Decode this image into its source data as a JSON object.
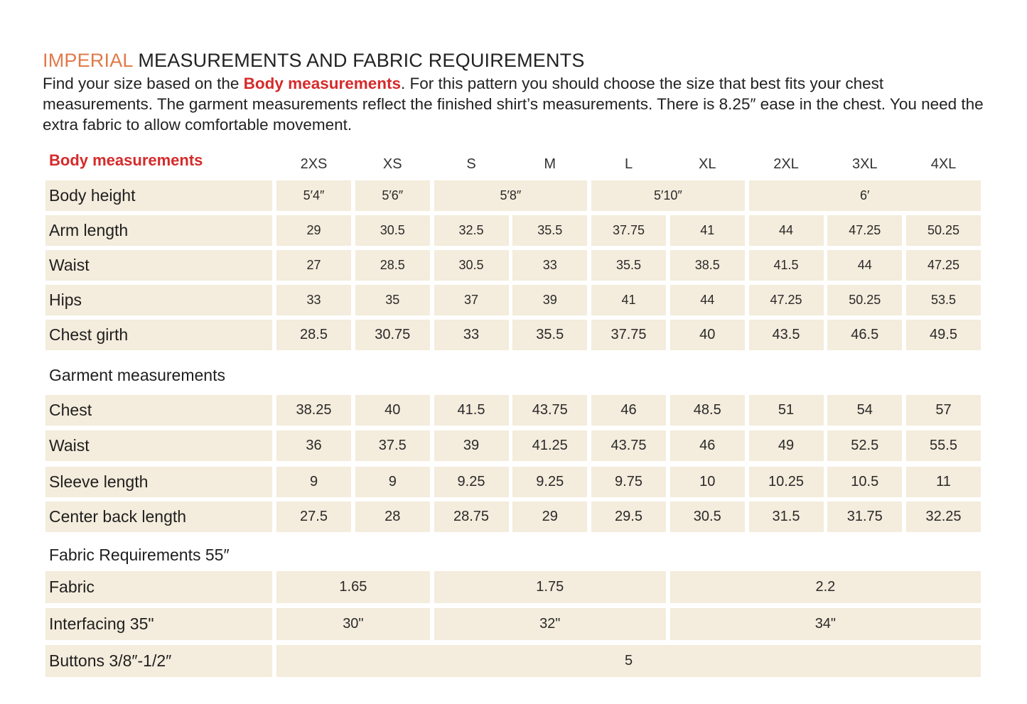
{
  "header": {
    "title_accent": "IMPERIAL",
    "title_rest": " MEASUREMENTS AND FABRIC REQUIREMENTS",
    "intro_part1": "Find your size based on the ",
    "intro_highlight": "Body measurements",
    "intro_part2": ". For this pattern you should choose the size that best fits your chest measurements. The garment measurements reflect the finished shirt’s measurements. There is 8.25″ ease in the chest. You need the extra fabric to allow comfortable movement."
  },
  "sizes": [
    "2XS",
    "XS",
    "S",
    "M",
    "L",
    "XL",
    "2XL",
    "3XL",
    "4XL"
  ],
  "sections": {
    "body": "Body measurements",
    "garment": "Garment measurements",
    "fabric": "Fabric Requirements 55″"
  },
  "body_rows": [
    {
      "label": "Body height",
      "cells": [
        {
          "v": "5′4″",
          "span": 1
        },
        {
          "v": "5′6″",
          "span": 1
        },
        {
          "v": "5′8″",
          "span": 2
        },
        {
          "v": "5′10″",
          "span": 2
        },
        {
          "v": "6′",
          "span": 3
        }
      ]
    },
    {
      "label": "Arm length",
      "cells": [
        {
          "v": "29",
          "span": 1
        },
        {
          "v": "30.5",
          "span": 1
        },
        {
          "v": "32.5",
          "span": 1
        },
        {
          "v": "35.5",
          "span": 1
        },
        {
          "v": "37.75",
          "span": 1
        },
        {
          "v": "41",
          "span": 1
        },
        {
          "v": "44",
          "span": 1
        },
        {
          "v": "47.25",
          "span": 1
        },
        {
          "v": "50.25",
          "span": 1
        }
      ]
    },
    {
      "label": "Waist",
      "cells": [
        {
          "v": "27",
          "span": 1
        },
        {
          "v": "28.5",
          "span": 1
        },
        {
          "v": "30.5",
          "span": 1
        },
        {
          "v": "33",
          "span": 1
        },
        {
          "v": "35.5",
          "span": 1
        },
        {
          "v": "38.5",
          "span": 1
        },
        {
          "v": "41.5",
          "span": 1
        },
        {
          "v": "44",
          "span": 1
        },
        {
          "v": "47.25",
          "span": 1
        }
      ]
    },
    {
      "label": "Hips",
      "cells": [
        {
          "v": "33",
          "span": 1
        },
        {
          "v": "35",
          "span": 1
        },
        {
          "v": "37",
          "span": 1
        },
        {
          "v": "39",
          "span": 1
        },
        {
          "v": "41",
          "span": 1
        },
        {
          "v": "44",
          "span": 1
        },
        {
          "v": "47.25",
          "span": 1
        },
        {
          "v": "50.25",
          "span": 1
        },
        {
          "v": "53.5",
          "span": 1
        }
      ]
    },
    {
      "label": "Chest girth",
      "cells": [
        {
          "v": "28.5",
          "span": 1
        },
        {
          "v": "30.75",
          "span": 1
        },
        {
          "v": "33",
          "span": 1
        },
        {
          "v": "35.5",
          "span": 1
        },
        {
          "v": "37.75",
          "span": 1
        },
        {
          "v": "40",
          "span": 1
        },
        {
          "v": "43.5",
          "span": 1
        },
        {
          "v": "46.5",
          "span": 1
        },
        {
          "v": "49.5",
          "span": 1
        }
      ]
    }
  ],
  "garment_rows": [
    {
      "label": "Chest",
      "cells": [
        {
          "v": "38.25",
          "span": 1
        },
        {
          "v": "40",
          "span": 1
        },
        {
          "v": "41.5",
          "span": 1
        },
        {
          "v": "43.75",
          "span": 1
        },
        {
          "v": "46",
          "span": 1
        },
        {
          "v": "48.5",
          "span": 1
        },
        {
          "v": "51",
          "span": 1
        },
        {
          "v": "54",
          "span": 1
        },
        {
          "v": "57",
          "span": 1
        }
      ]
    },
    {
      "label": "Waist",
      "cells": [
        {
          "v": "36",
          "span": 1
        },
        {
          "v": "37.5",
          "span": 1
        },
        {
          "v": "39",
          "span": 1
        },
        {
          "v": "41.25",
          "span": 1
        },
        {
          "v": "43.75",
          "span": 1
        },
        {
          "v": "46",
          "span": 1
        },
        {
          "v": "49",
          "span": 1
        },
        {
          "v": "52.5",
          "span": 1
        },
        {
          "v": "55.5",
          "span": 1
        }
      ]
    },
    {
      "label": "Sleeve length",
      "cells": [
        {
          "v": "9",
          "span": 1
        },
        {
          "v": "9",
          "span": 1
        },
        {
          "v": "9.25",
          "span": 1
        },
        {
          "v": "9.25",
          "span": 1
        },
        {
          "v": "9.75",
          "span": 1
        },
        {
          "v": "10",
          "span": 1
        },
        {
          "v": "10.25",
          "span": 1
        },
        {
          "v": "10.5",
          "span": 1
        },
        {
          "v": "11",
          "span": 1
        }
      ]
    },
    {
      "label": "Center back length",
      "cells": [
        {
          "v": "27.5",
          "span": 1
        },
        {
          "v": "28",
          "span": 1
        },
        {
          "v": "28.75",
          "span": 1
        },
        {
          "v": "29",
          "span": 1
        },
        {
          "v": "29.5",
          "span": 1
        },
        {
          "v": "30.5",
          "span": 1
        },
        {
          "v": "31.5",
          "span": 1
        },
        {
          "v": "31.75",
          "span": 1
        },
        {
          "v": "32.25",
          "span": 1
        }
      ]
    }
  ],
  "fabric_rows": [
    {
      "label": "Fabric",
      "cells": [
        {
          "v": "1.65",
          "span": 2
        },
        {
          "v": "1.75",
          "span": 3
        },
        {
          "v": "2.2",
          "span": 4
        }
      ]
    },
    {
      "label": "Interfacing 35\"",
      "cells": [
        {
          "v": "30\"",
          "span": 2
        },
        {
          "v": "32\"",
          "span": 3
        },
        {
          "v": "34\"",
          "span": 4
        }
      ]
    },
    {
      "label": "Buttons 3/8″-1/2″",
      "cells": [
        {
          "v": "5",
          "span": 9
        }
      ]
    }
  ]
}
